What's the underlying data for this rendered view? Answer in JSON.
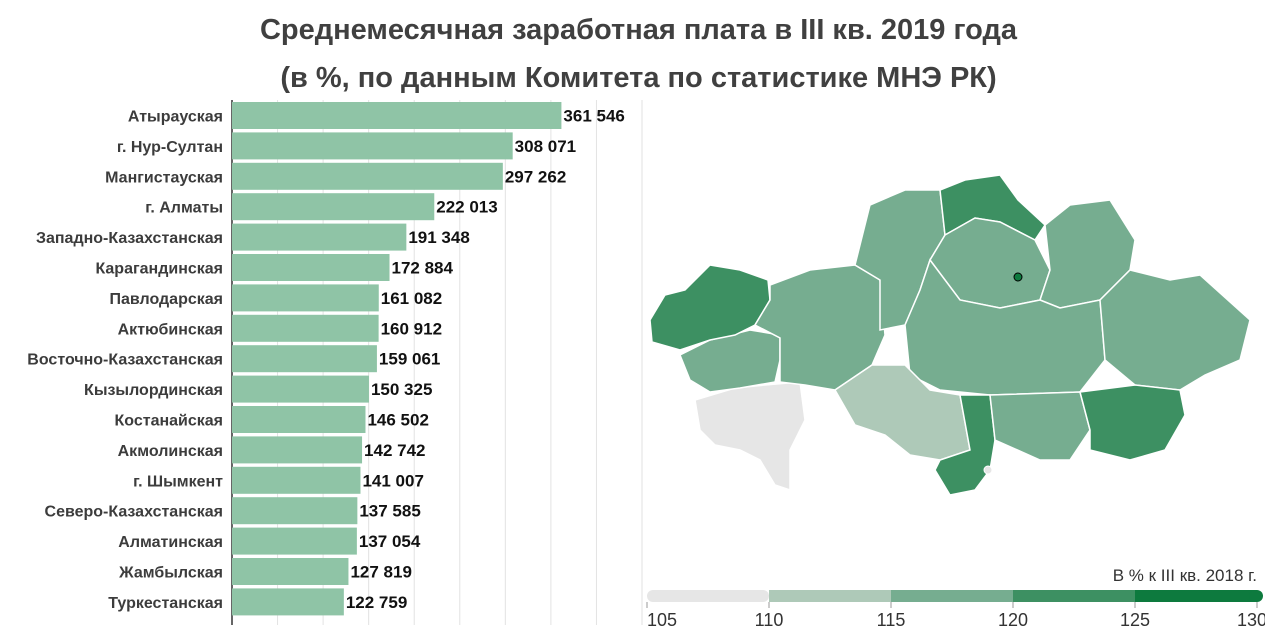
{
  "title_line1": "Среднемесячная заработная плата в III кв. 2019 года",
  "title_line2": "(в %, по данным Комитета по статистике МНЭ РК)",
  "chart_data": {
    "type": "bar",
    "orientation": "horizontal",
    "categories": [
      "Атырауская",
      "г. Нур-Султан",
      "Мангистауская",
      "г. Алматы",
      "Западно-Казахстанская",
      "Карагандинская",
      "Павлодарская",
      "Актюбинская",
      "Восточно-Казахстанская",
      "Кызылординская",
      "Костанайская",
      "Акмолинская",
      "г. Шымкент",
      "Северо-Казахстанская",
      "Алматинская",
      "Жамбылская",
      "Туркестанская"
    ],
    "values": [
      361546,
      308071,
      297262,
      222013,
      191348,
      172884,
      161082,
      160912,
      159061,
      150325,
      146502,
      142742,
      141007,
      137585,
      137054,
      127819,
      122759
    ],
    "value_labels": [
      "361 546",
      "308 071",
      "297 262",
      "222 013",
      "191 348",
      "172 884",
      "161 082",
      "160 912",
      "159 061",
      "150 325",
      "146 502",
      "142 742",
      "141 007",
      "137 585",
      "137 054",
      "127 819",
      "122 759"
    ],
    "xlim": [
      0,
      450000
    ],
    "bar_color": "#8fc4a6"
  },
  "legend": {
    "title": "В % к III кв. 2018 г.",
    "ticks": [
      "105",
      "110",
      "115",
      "120",
      "125",
      "130"
    ],
    "colors": [
      "#e6e6e6",
      "#aec9b8",
      "#76ad90",
      "#3d9062",
      "#0d7a3e"
    ]
  }
}
